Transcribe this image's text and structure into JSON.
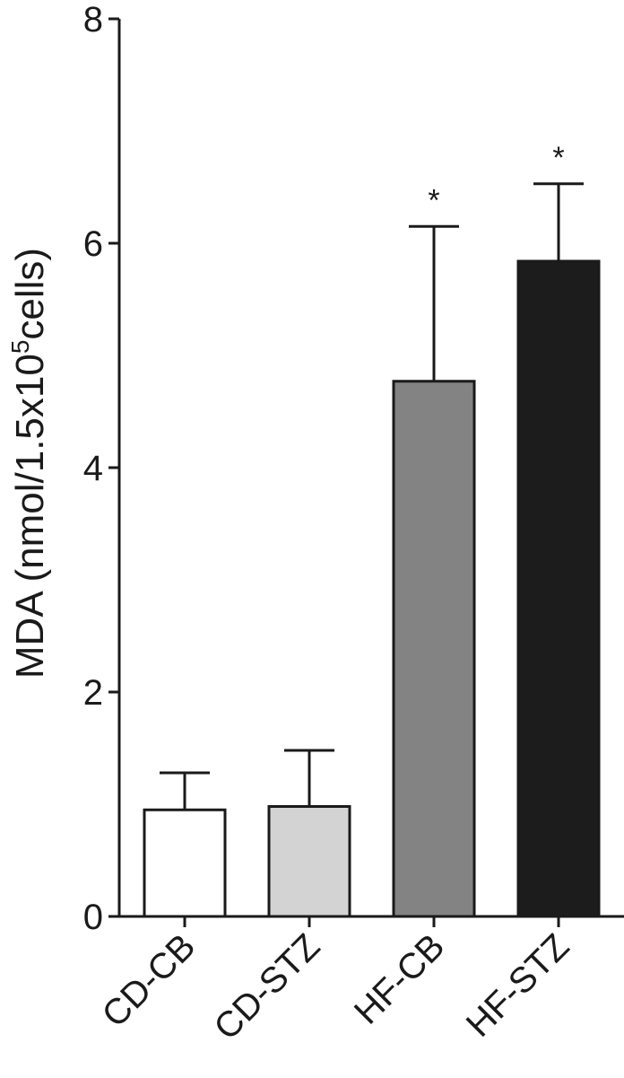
{
  "chart_data": {
    "type": "bar",
    "categories": [
      "CD-CB",
      "CD-STZ",
      "HF-CB",
      "HF-STZ"
    ],
    "values": [
      0.95,
      0.98,
      4.77,
      5.84
    ],
    "errors": [
      0.33,
      0.5,
      1.38,
      0.69
    ],
    "annotations": [
      "",
      "",
      "*",
      "*"
    ],
    "colors": [
      "#ffffff",
      "#d3d3d3",
      "#838383",
      "#1c1c1c"
    ],
    "ylabel_prefix": "MDA (nmol/1.5x10",
    "ylabel_sup": "5",
    "ylabel_suffix": "cells)",
    "xlabel": "",
    "ylim": [
      0,
      8
    ],
    "yticks": [
      "0",
      "2",
      "4",
      "6",
      "8"
    ],
    "grid": false
  }
}
